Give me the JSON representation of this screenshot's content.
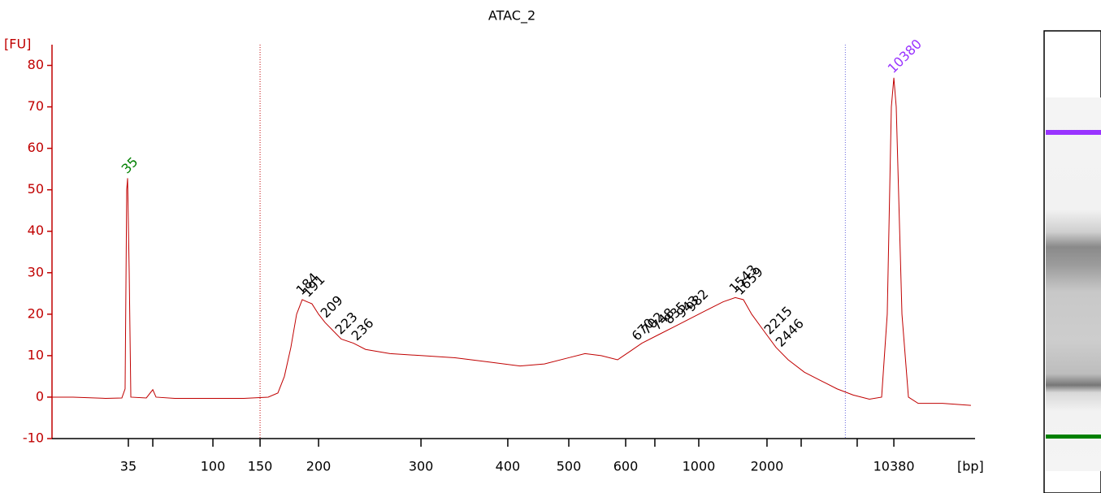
{
  "chart_data": {
    "type": "line",
    "title": "ATAC_2",
    "ylabel": "[FU]",
    "xlabel": "[bp]",
    "x": [
      38.0,
      39.69,
      42.3,
      43.6,
      43.86,
      43.99,
      44.06,
      44.19,
      44.32,
      45.56,
      46.08,
      46.34,
      47.84,
      50.12,
      53.38,
      55.33,
      56.11,
      56.63,
      57.15,
      57.61,
      58.06,
      58.45,
      58.84,
      59.37,
      59.89,
      60.54,
      61.19,
      62.17,
      63.14,
      65.1,
      67.7,
      70.31,
      72.92,
      75.52,
      77.47,
      79.43,
      80.73,
      82.03,
      83.34,
      84.32,
      85.29,
      86.59,
      87.9,
      89.2,
      90.5,
      91.81,
      92.78,
      93.43,
      94.09,
      95.06,
      96.04,
      97.02,
      98.32,
      99.62,
      100.93,
      102.23,
      103.53,
      104.51,
      104.96,
      105.29,
      105.49,
      105.68,
      106.14,
      106.66,
      107.44,
      109.4,
      111.67
    ],
    "series": [
      {
        "color": "#c00000",
        "values": [
          0,
          0,
          -0.3,
          -0.2,
          2,
          50,
          52.8,
          30,
          0,
          -0.2,
          1.8,
          0,
          -0.3,
          -0.3,
          -0.3,
          0,
          1,
          5,
          12,
          20,
          23.5,
          23,
          22.5,
          20,
          18,
          16,
          14,
          13,
          11.5,
          10.5,
          10,
          9.5,
          8.5,
          7.5,
          8,
          9.5,
          10.5,
          10,
          9,
          11,
          13,
          15,
          17,
          19,
          21,
          23,
          24,
          23.5,
          20,
          16,
          12,
          9,
          6,
          4,
          2,
          0.5,
          -0.5,
          0,
          20,
          70,
          77,
          70,
          20,
          0,
          -1.5,
          -1.5,
          -2
        ]
      }
    ],
    "xlim": [
      38,
      112
    ],
    "ylim": [
      -10,
      85
    ],
    "yticks": [
      -10,
      0,
      10,
      20,
      30,
      40,
      50,
      60,
      70,
      80
    ],
    "xticks": [
      {
        "value": 44.12,
        "label": "35"
      },
      {
        "value": 46.08,
        "label": null
      },
      {
        "value": 50.9,
        "label": "100"
      },
      {
        "value": 54.68,
        "label": "150"
      },
      {
        "value": 59.37,
        "label": "200"
      },
      {
        "value": 67.58,
        "label": "300"
      },
      {
        "value": 74.54,
        "label": "400"
      },
      {
        "value": 79.43,
        "label": "500"
      },
      {
        "value": 83.99,
        "label": "600"
      },
      {
        "value": 86.33,
        "label": null
      },
      {
        "value": 89.85,
        "label": "1000"
      },
      {
        "value": 95.32,
        "label": "2000"
      },
      {
        "value": 98.06,
        "label": null
      },
      {
        "value": 102.55,
        "label": null
      },
      {
        "value": 105.49,
        "label": "10380"
      }
    ],
    "markers": [
      {
        "x": 54.68,
        "color": "#c00000"
      },
      {
        "x": 101.6,
        "color": "#6666dd"
      }
    ],
    "peaks": [
      {
        "size": 35,
        "x": 44.06,
        "y": 52.8,
        "color": "#008000"
      },
      {
        "size": 184,
        "x": 58.06,
        "y": 23.5,
        "color": "#000000"
      },
      {
        "size": 191,
        "x": 58.58,
        "y": 23,
        "color": "#000000"
      },
      {
        "size": 209,
        "x": 60.02,
        "y": 18,
        "color": "#000000"
      },
      {
        "size": 223,
        "x": 61.19,
        "y": 14,
        "color": "#000000"
      },
      {
        "size": 236,
        "x": 62.49,
        "y": 12.5,
        "color": "#000000"
      },
      {
        "size": 670,
        "x": 84.97,
        "y": 12.5,
        "color": "#000000"
      },
      {
        "size": 702,
        "x": 85.75,
        "y": 14,
        "color": "#000000"
      },
      {
        "size": 748,
        "x": 86.59,
        "y": 15,
        "color": "#000000"
      },
      {
        "size": 835,
        "x": 87.57,
        "y": 16.5,
        "color": "#000000"
      },
      {
        "size": 943,
        "x": 88.55,
        "y": 18,
        "color": "#000000"
      },
      {
        "size": 982,
        "x": 89.33,
        "y": 19.5,
        "color": "#000000"
      },
      {
        "size": 1543,
        "x": 92.78,
        "y": 24,
        "color": "#000000"
      },
      {
        "size": 1659,
        "x": 93.24,
        "y": 23.5,
        "color": "#000000"
      },
      {
        "size": 2215,
        "x": 95.58,
        "y": 14,
        "color": "#000000"
      },
      {
        "size": 2446,
        "x": 96.5,
        "y": 11,
        "color": "#000000"
      },
      {
        "size": 10380,
        "x": 105.49,
        "y": 77,
        "color": "#9933ff"
      }
    ]
  }
}
